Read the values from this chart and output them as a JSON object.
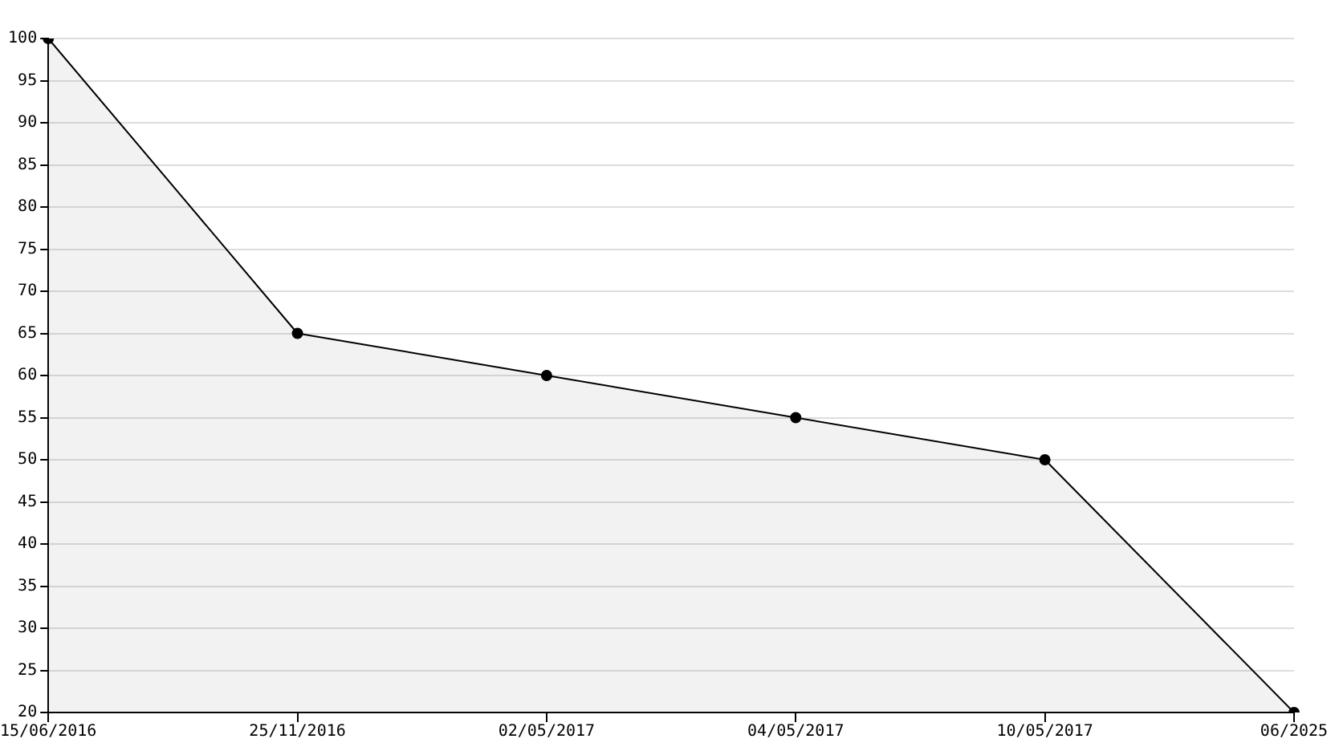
{
  "chart_data": {
    "type": "area",
    "categories": [
      "15/06/2016",
      "25/11/2016",
      "02/05/2017",
      "04/05/2017",
      "10/05/2017",
      "06/2025"
    ],
    "series": [
      {
        "color": "#000000",
        "values": [
          100,
          65,
          60,
          55,
          50,
          20
        ]
      }
    ],
    "ylim": [
      20,
      100
    ],
    "yticks": [
      20,
      25,
      30,
      35,
      40,
      45,
      50,
      55,
      60,
      65,
      70,
      75,
      80,
      85,
      90,
      95,
      100
    ],
    "grid": "y",
    "marker": "circle",
    "line_style": "solid"
  }
}
